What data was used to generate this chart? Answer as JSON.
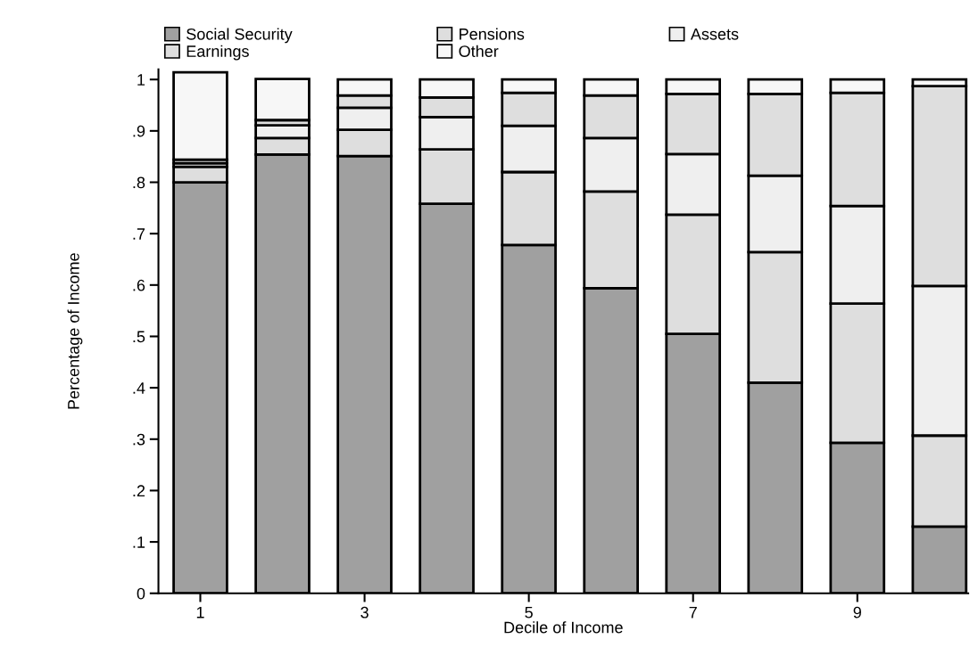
{
  "chart_data": {
    "type": "bar",
    "stacked": true,
    "xlabel": "Decile of Income",
    "ylabel": "Percentage of Income",
    "x": [
      1,
      2,
      3,
      4,
      5,
      6,
      7,
      8,
      9,
      10
    ],
    "xlim": [
      0.49,
      10.35
    ],
    "xticks": [
      1,
      3,
      5,
      7,
      9
    ],
    "ylim": [
      0,
      1.02
    ],
    "yticks": [
      0,
      {
        "value": 0.1,
        "label": ".1"
      },
      {
        "value": 0.2,
        "label": ".2"
      },
      {
        "value": 0.3,
        "label": ".3"
      },
      {
        "value": 0.4,
        "label": ".4"
      },
      {
        "value": 0.5,
        "label": ".5"
      },
      {
        "value": 0.6,
        "label": ".6"
      },
      {
        "value": 0.7,
        "label": ".7"
      },
      {
        "value": 0.8,
        "label": ".8"
      },
      {
        "value": 0.9,
        "label": ".9"
      },
      1
    ],
    "grid": false,
    "legend": "top",
    "series": [
      {
        "name": "Social Security",
        "color": "#a0a0a0",
        "values": [
          0.8,
          0.854,
          0.851,
          0.758,
          0.678,
          0.594,
          0.505,
          0.41,
          0.293,
          0.13
        ]
      },
      {
        "name": "Pensions",
        "color": "#dedede",
        "values": [
          0.03,
          0.032,
          0.051,
          0.106,
          0.142,
          0.188,
          0.232,
          0.254,
          0.271,
          0.177
        ]
      },
      {
        "name": "Assets",
        "color": "#efefef",
        "values": [
          0.007,
          0.025,
          0.043,
          0.063,
          0.09,
          0.104,
          0.118,
          0.149,
          0.19,
          0.291
        ]
      },
      {
        "name": "Earnings",
        "color": "#dedede",
        "values": [
          0.007,
          0.01,
          0.024,
          0.038,
          0.064,
          0.083,
          0.117,
          0.159,
          0.22,
          0.389
        ]
      },
      {
        "name": "Other",
        "color": "#f7f7f7",
        "values": [
          0.17,
          0.08,
          0.031,
          0.035,
          0.026,
          0.031,
          0.028,
          0.028,
          0.026,
          0.013
        ]
      }
    ]
  }
}
